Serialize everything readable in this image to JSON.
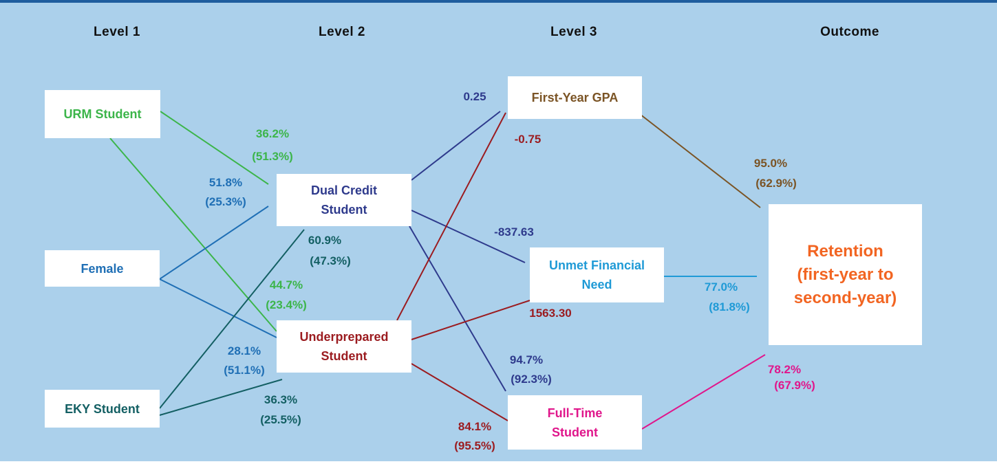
{
  "levels": [
    "Level 1",
    "Level 2",
    "Level 3",
    "Outcome"
  ],
  "nodes": [
    {
      "lines": [
        "URM Student"
      ]
    },
    {
      "lines": [
        "Female"
      ]
    },
    {
      "lines": [
        "EKY Student"
      ]
    },
    {
      "lines": [
        "Dual Credit",
        "Student"
      ]
    },
    {
      "lines": [
        "Underprepared",
        "Student"
      ]
    },
    {
      "lines": [
        "First-Year GPA"
      ]
    },
    {
      "lines": [
        "Unmet Financial",
        "Need"
      ]
    },
    {
      "lines": [
        "Full-Time",
        "Student"
      ]
    },
    {
      "lines": [
        "Retention",
        "(first-year to",
        "second-year)"
      ]
    }
  ],
  "edges": [
    {
      "labels": [
        "36.2%",
        "(51.3%)"
      ]
    },
    {
      "labels": [
        "51.8%",
        "(25.3%)"
      ]
    },
    {
      "labels": [
        "60.9%",
        "(47.3%)"
      ]
    },
    {
      "labels": [
        "44.7%",
        "(23.4%)"
      ]
    },
    {
      "labels": [
        "28.1%",
        "(51.1%)"
      ]
    },
    {
      "labels": [
        "36.3%",
        "(25.5%)"
      ]
    },
    {
      "labels": [
        "0.25"
      ]
    },
    {
      "labels": [
        "-0.75"
      ]
    },
    {
      "labels": [
        "-837.63"
      ]
    },
    {
      "labels": [
        "1563.30"
      ]
    },
    {
      "labels": [
        "94.7%",
        "(92.3%)"
      ]
    },
    {
      "labels": [
        "84.1%",
        "(95.5%)"
      ]
    },
    {
      "labels": [
        "95.0%",
        "(62.9%)"
      ]
    },
    {
      "labels": [
        "77.0%",
        "(81.8%)"
      ]
    },
    {
      "labels": [
        "78.2%",
        "(67.9%)"
      ]
    }
  ]
}
